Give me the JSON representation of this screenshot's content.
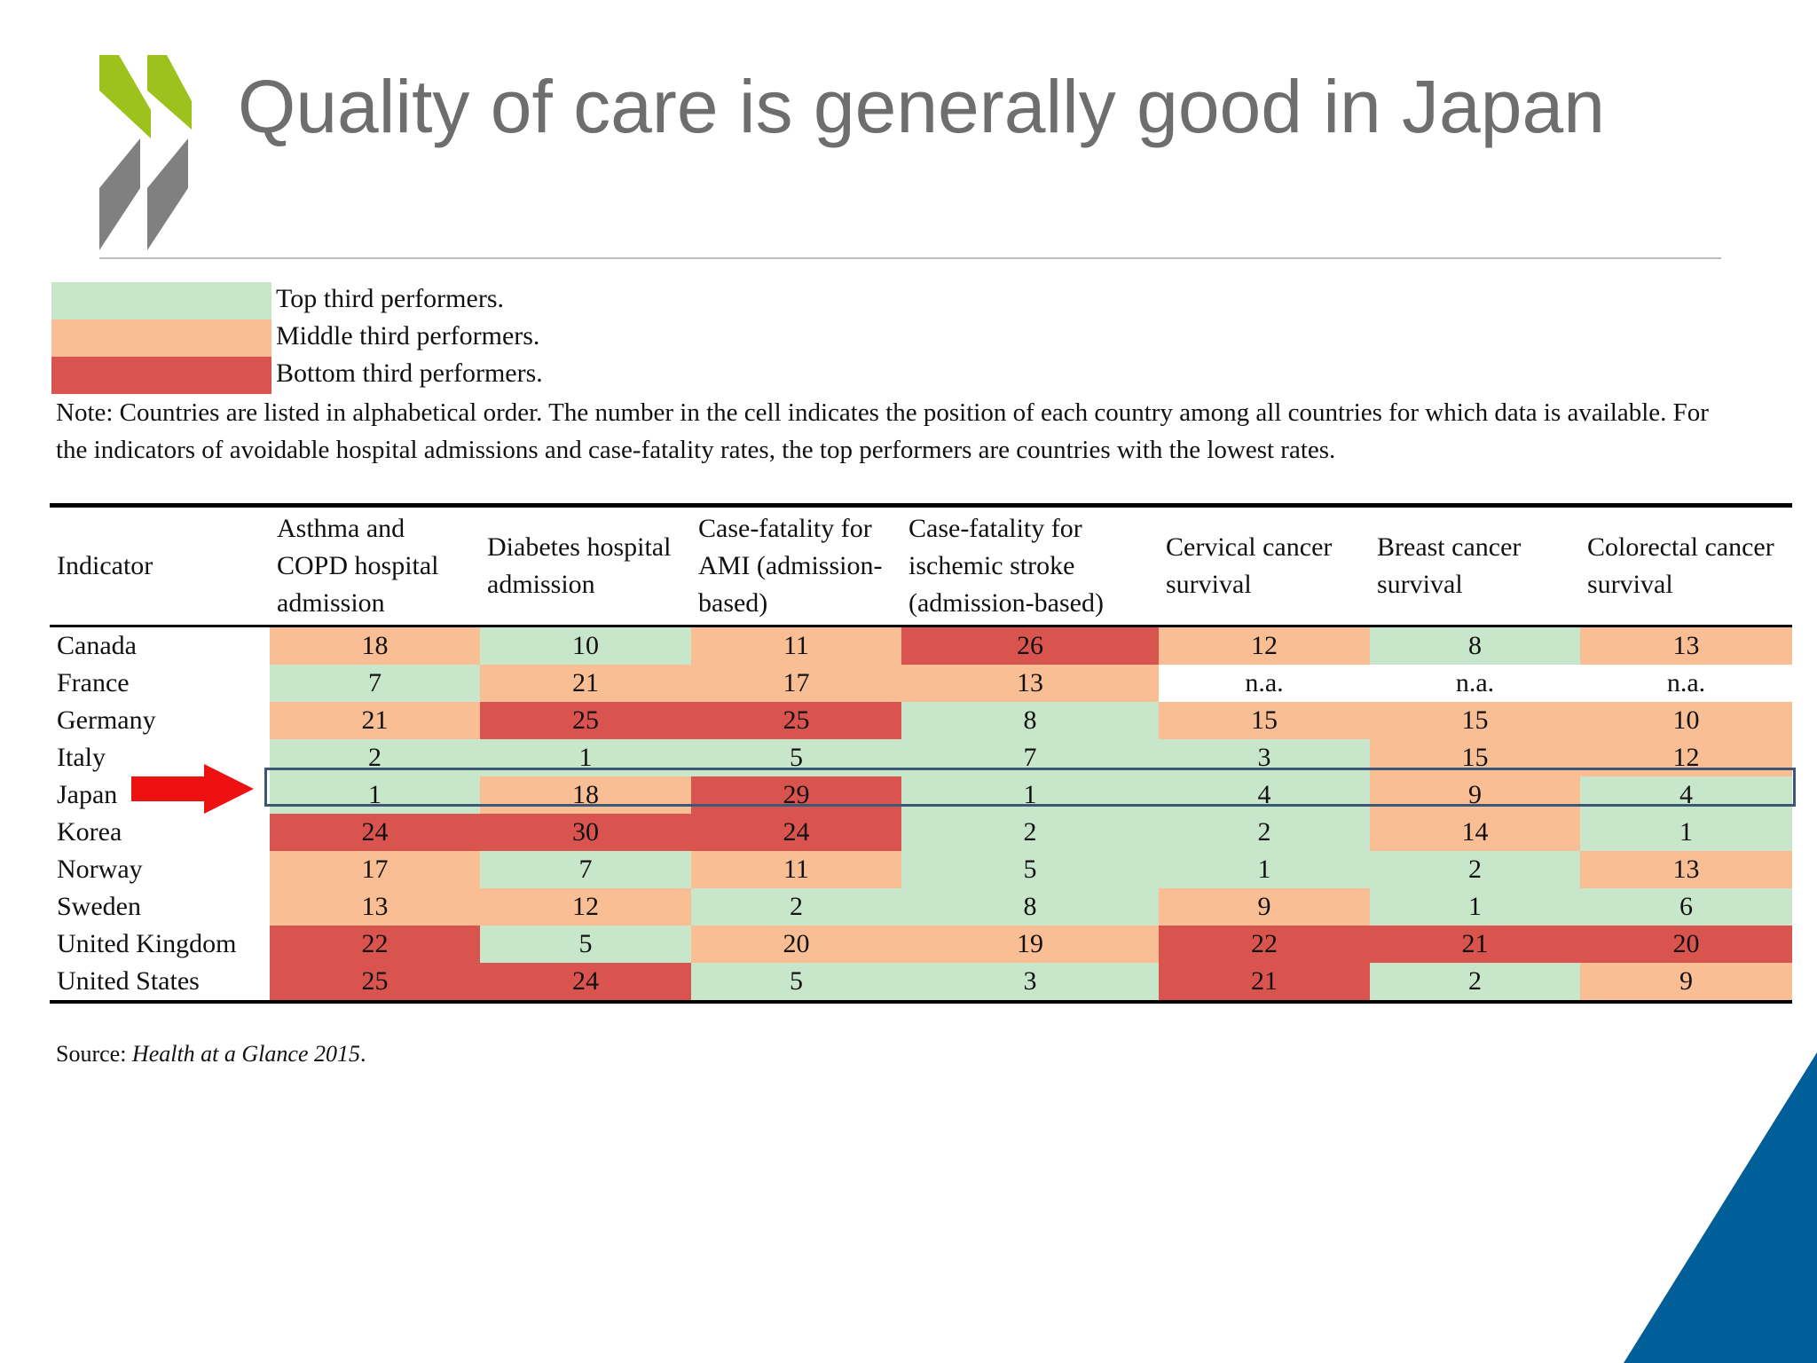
{
  "title": "Quality of care is generally good in Japan",
  "colors": {
    "top": "#c8e6c9",
    "middle": "#f9be94",
    "bottom": "#d9534f",
    "na": "#ffffff",
    "accent_green": "#9dc21e",
    "logo_grey": "#808080",
    "corner_blue": "#005f99"
  },
  "legend": [
    {
      "label": "Top third performers.",
      "tier": "top"
    },
    {
      "label": "Middle third performers.",
      "tier": "middle"
    },
    {
      "label": "Bottom third performers.",
      "tier": "bottom"
    }
  ],
  "note": "Note: Countries are listed in alphabetical order. The number in the cell indicates the position of each country among all countries for which data is available. For the indicators of avoidable hospital admissions and case-fatality rates, the top performers are countries with the lowest rates.",
  "table": {
    "indicator_header": "Indicator",
    "columns": [
      "Asthma and COPD hospital admission",
      "Diabetes hospital admission",
      "Case-fatality for AMI (admission-based)",
      "Case-fatality for ischemic stroke (admission-based)",
      "Cervical cancer survival",
      "Breast cancer survival",
      "Colorectal cancer survival"
    ],
    "rows": [
      {
        "country": "Canada",
        "cells": [
          {
            "v": "18",
            "t": "middle"
          },
          {
            "v": "10",
            "t": "top"
          },
          {
            "v": "11",
            "t": "middle"
          },
          {
            "v": "26",
            "t": "bottom"
          },
          {
            "v": "12",
            "t": "middle"
          },
          {
            "v": "8",
            "t": "top"
          },
          {
            "v": "13",
            "t": "middle"
          }
        ]
      },
      {
        "country": "France",
        "cells": [
          {
            "v": "7",
            "t": "top"
          },
          {
            "v": "21",
            "t": "middle"
          },
          {
            "v": "17",
            "t": "middle"
          },
          {
            "v": "13",
            "t": "middle"
          },
          {
            "v": "n.a.",
            "t": "na"
          },
          {
            "v": "n.a.",
            "t": "na"
          },
          {
            "v": "n.a.",
            "t": "na"
          }
        ]
      },
      {
        "country": "Germany",
        "cells": [
          {
            "v": "21",
            "t": "middle"
          },
          {
            "v": "25",
            "t": "bottom"
          },
          {
            "v": "25",
            "t": "bottom"
          },
          {
            "v": "8",
            "t": "top"
          },
          {
            "v": "15",
            "t": "middle"
          },
          {
            "v": "15",
            "t": "middle"
          },
          {
            "v": "10",
            "t": "middle"
          }
        ]
      },
      {
        "country": "Italy",
        "cells": [
          {
            "v": "2",
            "t": "top"
          },
          {
            "v": "1",
            "t": "top"
          },
          {
            "v": "5",
            "t": "top"
          },
          {
            "v": "7",
            "t": "top"
          },
          {
            "v": "3",
            "t": "top"
          },
          {
            "v": "15",
            "t": "middle"
          },
          {
            "v": "12",
            "t": "middle"
          }
        ]
      },
      {
        "country": "Japan",
        "highlighted": true,
        "cells": [
          {
            "v": "1",
            "t": "top"
          },
          {
            "v": "18",
            "t": "middle"
          },
          {
            "v": "29",
            "t": "bottom"
          },
          {
            "v": "1",
            "t": "top"
          },
          {
            "v": "4",
            "t": "top"
          },
          {
            "v": "9",
            "t": "middle"
          },
          {
            "v": "4",
            "t": "top"
          }
        ]
      },
      {
        "country": "Korea",
        "cells": [
          {
            "v": "24",
            "t": "bottom"
          },
          {
            "v": "30",
            "t": "bottom"
          },
          {
            "v": "24",
            "t": "bottom"
          },
          {
            "v": "2",
            "t": "top"
          },
          {
            "v": "2",
            "t": "top"
          },
          {
            "v": "14",
            "t": "middle"
          },
          {
            "v": "1",
            "t": "top"
          }
        ]
      },
      {
        "country": "Norway",
        "cells": [
          {
            "v": "17",
            "t": "middle"
          },
          {
            "v": "7",
            "t": "top"
          },
          {
            "v": "11",
            "t": "middle"
          },
          {
            "v": "5",
            "t": "top"
          },
          {
            "v": "1",
            "t": "top"
          },
          {
            "v": "2",
            "t": "top"
          },
          {
            "v": "13",
            "t": "middle"
          }
        ]
      },
      {
        "country": "Sweden",
        "cells": [
          {
            "v": "13",
            "t": "middle"
          },
          {
            "v": "12",
            "t": "middle"
          },
          {
            "v": "2",
            "t": "top"
          },
          {
            "v": "8",
            "t": "top"
          },
          {
            "v": "9",
            "t": "middle"
          },
          {
            "v": "1",
            "t": "top"
          },
          {
            "v": "6",
            "t": "top"
          }
        ]
      },
      {
        "country": "United Kingdom",
        "cells": [
          {
            "v": "22",
            "t": "bottom"
          },
          {
            "v": "5",
            "t": "top"
          },
          {
            "v": "20",
            "t": "middle"
          },
          {
            "v": "19",
            "t": "middle"
          },
          {
            "v": "22",
            "t": "bottom"
          },
          {
            "v": "21",
            "t": "bottom"
          },
          {
            "v": "20",
            "t": "bottom"
          }
        ]
      },
      {
        "country": "United States",
        "cells": [
          {
            "v": "25",
            "t": "bottom"
          },
          {
            "v": "24",
            "t": "bottom"
          },
          {
            "v": "5",
            "t": "top"
          },
          {
            "v": "3",
            "t": "top"
          },
          {
            "v": "21",
            "t": "bottom"
          },
          {
            "v": "2",
            "t": "top"
          },
          {
            "v": "9",
            "t": "middle"
          }
        ]
      }
    ]
  },
  "source": {
    "prefix": "Source: ",
    "title": "Health at a Glance 2015",
    "suffix": "."
  }
}
